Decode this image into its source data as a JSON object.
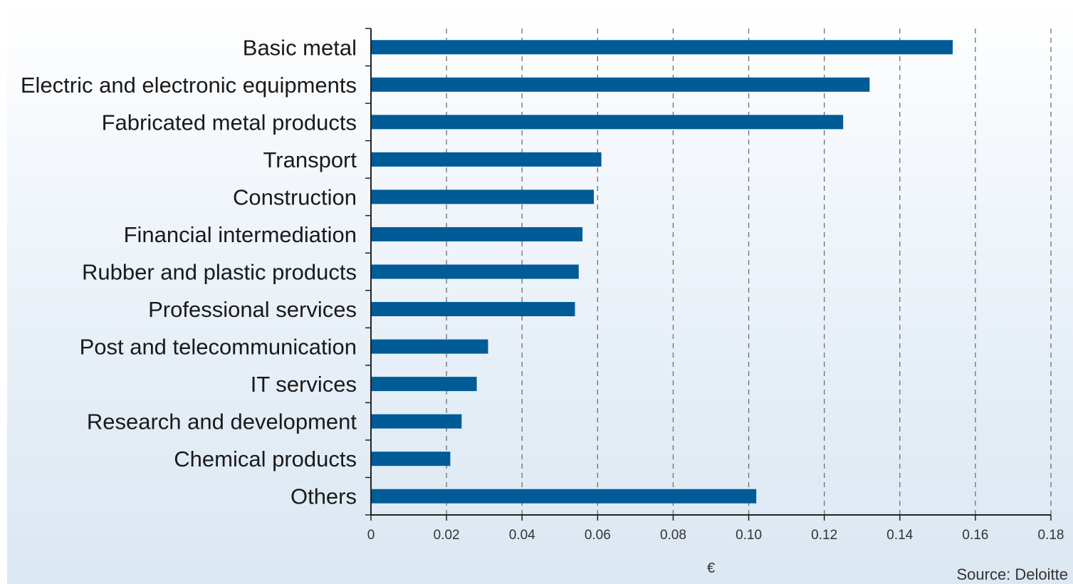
{
  "chart_data": {
    "type": "bar",
    "orientation": "horizontal",
    "categories": [
      "Basic metal",
      "Electric and electronic equipments",
      "Fabricated metal products",
      "Transport",
      "Construction",
      "Financial intermediation",
      "Rubber and plastic products",
      "Professional services",
      "Post and telecommunication",
      "IT services",
      "Research and development",
      "Chemical products",
      "Others"
    ],
    "values": [
      0.154,
      0.132,
      0.125,
      0.061,
      0.059,
      0.056,
      0.055,
      0.054,
      0.031,
      0.028,
      0.024,
      0.021,
      0.102
    ],
    "xlim": [
      0,
      0.18
    ],
    "xticks": [
      "0",
      "0.02",
      "0.04",
      "0.06",
      "0.08",
      "0.10",
      "0.12",
      "0.14",
      "0.16",
      "0.18"
    ],
    "xlabel": "€",
    "ylabel": "",
    "title": "",
    "grid": "vertical dashed",
    "bar_color": "#005b96",
    "source": "Source: Deloitte"
  }
}
